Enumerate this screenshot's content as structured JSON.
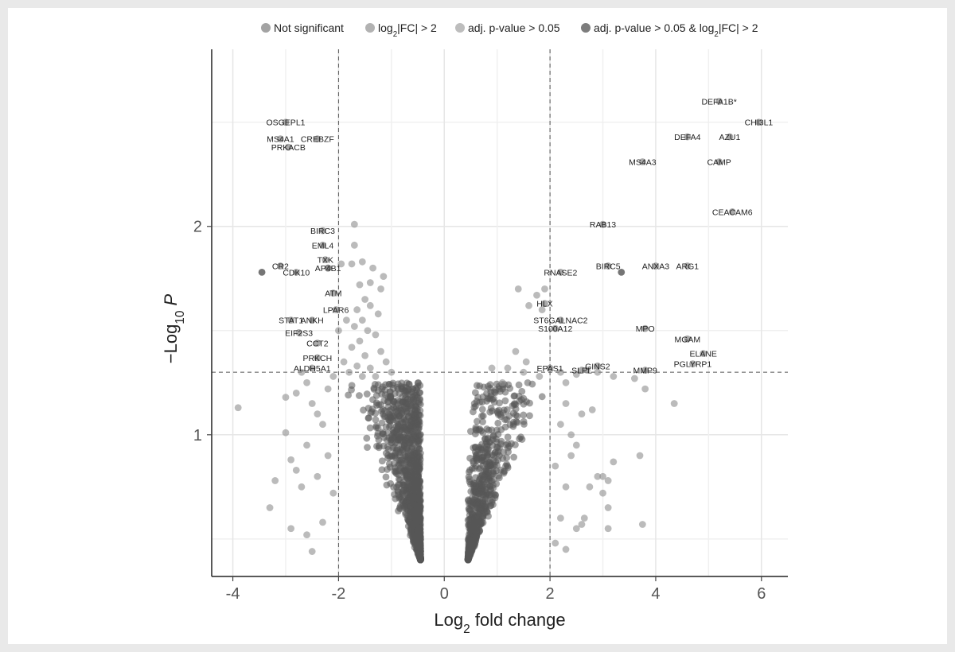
{
  "chart_data": {
    "type": "scatter",
    "title": "",
    "xlabel_base": "Log",
    "xlabel_sub": "2",
    "xlabel_rest": " fold change",
    "ylabel_prefix": "−Log",
    "ylabel_sub": "10",
    "ylabel_var": "P",
    "xlim": [
      -4.4,
      6.5
    ],
    "ylim": [
      0.32,
      2.85
    ],
    "xticks": [
      -4,
      -2,
      0,
      2,
      4,
      6
    ],
    "xtick_labels": [
      "-4",
      "-2",
      "0",
      "2",
      "4",
      "6"
    ],
    "yticks": [
      1,
      2
    ],
    "ytick_labels": [
      "1",
      "2"
    ],
    "fc_cutoffs": [
      -2,
      2
    ],
    "p_cutoff": 1.3,
    "grid": true,
    "legend_placement": "top",
    "legend": [
      {
        "label_main": "Not significant",
        "label_sub": "",
        "label_tail": "",
        "label_end": "",
        "color": "#a3a3a3"
      },
      {
        "label_main": "log",
        "label_sub": "2",
        "label_tail": "|FC| > 2",
        "label_end": "",
        "color": "#b2b2b2"
      },
      {
        "label_main": "adj. p-value > 0.05",
        "label_sub": "",
        "label_tail": "",
        "label_end": "",
        "color": "#bdbdbd"
      },
      {
        "label_main": "adj. p-value > 0.05 & log",
        "label_sub": "2",
        "label_tail": "|FC| > 2",
        "label_end": "",
        "color": "#7d7d7d"
      }
    ],
    "series": [
      {
        "values": [
          [
            -3.9,
            1.13
          ],
          [
            -3.0,
            1.01
          ],
          [
            -3.3,
            0.65
          ],
          [
            -2.9,
            0.55
          ],
          [
            -2.6,
            0.52
          ],
          [
            -2.3,
            0.58
          ],
          [
            -2.5,
            0.44
          ],
          [
            -2.7,
            0.75
          ],
          [
            -2.8,
            0.83
          ],
          [
            -2.4,
            0.8
          ],
          [
            -2.1,
            0.72
          ],
          [
            -2.2,
            0.9
          ],
          [
            -2.6,
            0.95
          ],
          [
            -2.9,
            0.88
          ],
          [
            -3.2,
            0.78
          ],
          [
            -2.3,
            1.05
          ],
          [
            -2.5,
            1.15
          ],
          [
            -2.8,
            1.2
          ],
          [
            -2.2,
            1.22
          ],
          [
            -2.6,
            1.25
          ],
          [
            -3.0,
            1.18
          ],
          [
            -2.4,
            1.1
          ],
          [
            -2.1,
            1.28
          ],
          [
            -2.7,
            1.3
          ],
          [
            -1.7,
            2.01
          ],
          [
            -1.7,
            1.91
          ],
          [
            -1.95,
            1.82
          ],
          [
            -1.75,
            1.82
          ],
          [
            -1.55,
            1.83
          ],
          [
            -1.35,
            1.8
          ],
          [
            -1.15,
            1.76
          ],
          [
            -1.6,
            1.72
          ],
          [
            -1.4,
            1.73
          ],
          [
            -1.2,
            1.7
          ],
          [
            -1.5,
            1.65
          ],
          [
            -1.65,
            1.6
          ],
          [
            -1.4,
            1.62
          ],
          [
            -1.55,
            1.55
          ],
          [
            -1.25,
            1.58
          ],
          [
            -1.85,
            1.55
          ],
          [
            -1.7,
            1.52
          ],
          [
            -1.45,
            1.5
          ],
          [
            -1.6,
            1.45
          ],
          [
            -1.3,
            1.48
          ],
          [
            -2.0,
            1.5
          ],
          [
            -1.75,
            1.42
          ],
          [
            -1.5,
            1.38
          ],
          [
            -1.2,
            1.4
          ],
          [
            -1.9,
            1.35
          ],
          [
            -1.65,
            1.33
          ],
          [
            -1.4,
            1.32
          ],
          [
            -1.1,
            1.35
          ],
          [
            -1.8,
            1.3
          ],
          [
            -1.55,
            1.28
          ],
          [
            -1.3,
            1.28
          ],
          [
            -1.0,
            1.3
          ],
          [
            1.4,
            1.7
          ],
          [
            1.9,
            1.7
          ],
          [
            1.75,
            1.67
          ],
          [
            1.6,
            1.62
          ],
          [
            1.85,
            1.6
          ],
          [
            1.35,
            1.4
          ],
          [
            1.55,
            1.35
          ],
          [
            1.2,
            1.32
          ],
          [
            1.8,
            1.28
          ],
          [
            1.5,
            1.3
          ],
          [
            2.3,
            1.25
          ],
          [
            2.2,
            1.3
          ],
          [
            2.7,
            1.31
          ],
          [
            2.5,
            1.29
          ],
          [
            2.9,
            1.3
          ],
          [
            3.2,
            1.28
          ],
          [
            3.6,
            1.27
          ],
          [
            3.8,
            1.22
          ],
          [
            4.35,
            1.15
          ],
          [
            3.7,
            0.9
          ],
          [
            3.2,
            0.87
          ],
          [
            3.0,
            0.8
          ],
          [
            3.1,
            0.78
          ],
          [
            2.9,
            0.8
          ],
          [
            2.75,
            0.75
          ],
          [
            3.0,
            0.72
          ],
          [
            3.1,
            0.65
          ],
          [
            2.65,
            0.6
          ],
          [
            2.5,
            0.55
          ],
          [
            2.6,
            0.57
          ],
          [
            3.1,
            0.55
          ],
          [
            3.75,
            0.57
          ],
          [
            2.4,
            0.9
          ],
          [
            2.2,
            1.05
          ],
          [
            2.1,
            0.85
          ],
          [
            2.3,
            0.75
          ],
          [
            2.2,
            0.6
          ],
          [
            2.1,
            0.48
          ],
          [
            2.3,
            0.45
          ],
          [
            2.5,
            0.95
          ],
          [
            2.3,
            1.15
          ],
          [
            2.6,
            1.1
          ],
          [
            2.4,
            1.0
          ],
          [
            2.8,
            1.12
          ],
          [
            1.1,
            1.25
          ],
          [
            0.9,
            1.32
          ]
        ]
      },
      {
        "values": []
      },
      {
        "values": []
      },
      {
        "values": [
          [
            -3.45,
            1.78
          ],
          [
            -2.2,
            1.8
          ],
          [
            3.35,
            1.78
          ]
        ]
      }
    ],
    "labeled_points": [
      {
        "name": "DEFA1B*",
        "x": 5.2,
        "y": 2.6
      },
      {
        "name": "CHI3L1",
        "x": 5.95,
        "y": 2.5
      },
      {
        "name": "DEFA4",
        "x": 4.6,
        "y": 2.43
      },
      {
        "name": "AZU1",
        "x": 5.4,
        "y": 2.43
      },
      {
        "name": "CAMP",
        "x": 5.2,
        "y": 2.31
      },
      {
        "name": "MS4A3",
        "x": 3.75,
        "y": 2.31
      },
      {
        "name": "CEACAM6",
        "x": 5.45,
        "y": 2.07
      },
      {
        "name": "RAB13",
        "x": 3.0,
        "y": 2.01
      },
      {
        "name": "BIRC5",
        "x": 3.1,
        "y": 1.81
      },
      {
        "name": "ANXA3",
        "x": 4.0,
        "y": 1.81
      },
      {
        "name": "ARG1",
        "x": 4.6,
        "y": 1.81
      },
      {
        "name": "RNASE2",
        "x": 2.2,
        "y": 1.78
      },
      {
        "name": "HLX",
        "x": 1.9,
        "y": 1.63
      },
      {
        "name": "ST6GALNAC2",
        "x": 2.2,
        "y": 1.55
      },
      {
        "name": "S100A12",
        "x": 2.1,
        "y": 1.51
      },
      {
        "name": "MPO",
        "x": 3.8,
        "y": 1.51
      },
      {
        "name": "MGAM",
        "x": 4.6,
        "y": 1.46
      },
      {
        "name": "ELANE",
        "x": 4.9,
        "y": 1.39
      },
      {
        "name": "PGLYRP1",
        "x": 4.7,
        "y": 1.34
      },
      {
        "name": "GINS2",
        "x": 2.9,
        "y": 1.33
      },
      {
        "name": "EPAS1",
        "x": 2.0,
        "y": 1.32
      },
      {
        "name": "SLPL",
        "x": 2.6,
        "y": 1.31
      },
      {
        "name": "MMP9",
        "x": 3.8,
        "y": 1.31
      },
      {
        "name": "OSGEPL1",
        "x": -3.0,
        "y": 2.5
      },
      {
        "name": "MS4A1",
        "x": -3.1,
        "y": 2.42
      },
      {
        "name": "CREBZF",
        "x": -2.4,
        "y": 2.42
      },
      {
        "name": "PRKACB",
        "x": -2.95,
        "y": 2.38
      },
      {
        "name": "BIRC3",
        "x": -2.3,
        "y": 1.98
      },
      {
        "name": "EML4",
        "x": -2.3,
        "y": 1.91
      },
      {
        "name": "TXK",
        "x": -2.25,
        "y": 1.84
      },
      {
        "name": "AP4B1",
        "x": -2.2,
        "y": 1.8
      },
      {
        "name": "CR2",
        "x": -3.1,
        "y": 1.81
      },
      {
        "name": "CDK10",
        "x": -2.8,
        "y": 1.78
      },
      {
        "name": "ATM",
        "x": -2.1,
        "y": 1.68
      },
      {
        "name": "LPAR6",
        "x": -2.05,
        "y": 1.6
      },
      {
        "name": "STAT1",
        "x": -2.9,
        "y": 1.55
      },
      {
        "name": "ANKH",
        "x": -2.5,
        "y": 1.55
      },
      {
        "name": "EIF2S3",
        "x": -2.75,
        "y": 1.49
      },
      {
        "name": "CCT2",
        "x": -2.4,
        "y": 1.44
      },
      {
        "name": "PRKCH",
        "x": -2.4,
        "y": 1.37
      },
      {
        "name": "ALDH5A1",
        "x": -2.5,
        "y": 1.32
      }
    ]
  }
}
